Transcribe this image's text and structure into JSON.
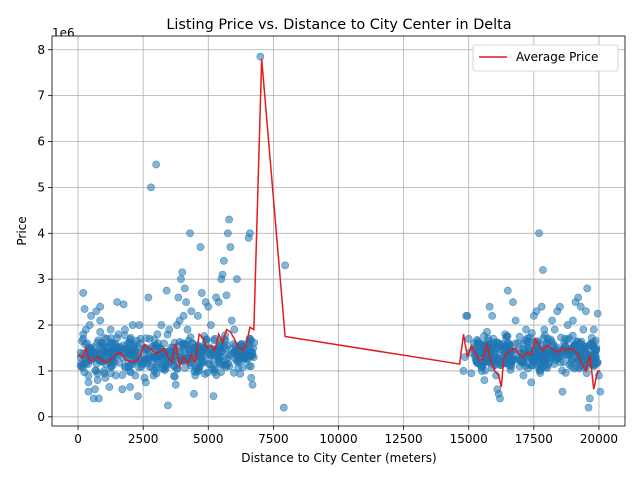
{
  "chart_data": {
    "type": "scatter",
    "title": "Listing Price vs. Distance to City Center in Delta",
    "xlabel": "Distance to City Center (meters)",
    "ylabel": "Price",
    "y_multiplier_label": "1e6",
    "xlim": [
      -1000,
      21000
    ],
    "ylim": [
      -0.2,
      8.3
    ],
    "x_ticks": [
      0,
      2500,
      5000,
      7500,
      10000,
      12500,
      15000,
      17500,
      20000
    ],
    "x_tick_labels": [
      "0",
      "2500",
      "5000",
      "7500",
      "10000",
      "12500",
      "15000",
      "17500",
      "20000"
    ],
    "y_ticks": [
      0,
      1,
      2,
      3,
      4,
      5,
      6,
      7,
      8
    ],
    "y_tick_labels": [
      "0",
      "1",
      "2",
      "3",
      "4",
      "5",
      "6",
      "7",
      "8"
    ],
    "grid": true,
    "legend_placement": "top-right",
    "colors": {
      "points": "#1f77b4",
      "line": "#e41a1c"
    },
    "scatter_series": {
      "name": "",
      "points": [
        [
          100,
          1.1
        ],
        [
          100,
          1.3
        ],
        [
          100,
          1.4
        ],
        [
          200,
          1.8
        ],
        [
          200,
          1.7
        ],
        [
          200,
          2.7
        ],
        [
          250,
          2.35
        ],
        [
          300,
          1.9
        ],
        [
          350,
          1.6
        ],
        [
          350,
          1.2
        ],
        [
          400,
          0.9
        ],
        [
          400,
          0.75
        ],
        [
          400,
          0.55
        ],
        [
          450,
          2.0
        ],
        [
          500,
          2.2
        ],
        [
          500,
          1.5
        ],
        [
          550,
          1.4
        ],
        [
          600,
          0.4
        ],
        [
          650,
          0.6
        ],
        [
          700,
          2.3
        ],
        [
          700,
          1.0
        ],
        [
          750,
          0.8
        ],
        [
          800,
          0.4
        ],
        [
          850,
          1.85
        ],
        [
          850,
          2.4
        ],
        [
          850,
          2.1
        ],
        [
          900,
          1.6
        ],
        [
          950,
          1.2
        ],
        [
          1000,
          1.0
        ],
        [
          1050,
          0.85
        ],
        [
          1100,
          1.7
        ],
        [
          1150,
          1.4
        ],
        [
          1200,
          0.65
        ],
        [
          1250,
          1.9
        ],
        [
          1300,
          1.6
        ],
        [
          1400,
          1.2
        ],
        [
          1450,
          0.9
        ],
        [
          1500,
          2.5
        ],
        [
          1550,
          1.8
        ],
        [
          1600,
          1.5
        ],
        [
          1700,
          0.6
        ],
        [
          1750,
          2.45
        ],
        [
          1800,
          1.9
        ],
        [
          1900,
          1.6
        ],
        [
          1950,
          1.1
        ],
        [
          2000,
          0.65
        ],
        [
          2100,
          2.0
        ],
        [
          2150,
          1.4
        ],
        [
          2200,
          0.9
        ],
        [
          2300,
          0.45
        ],
        [
          2350,
          2.0
        ],
        [
          2400,
          1.6
        ],
        [
          2500,
          1.2
        ],
        [
          2550,
          0.85
        ],
        [
          2600,
          0.75
        ],
        [
          2700,
          2.6
        ],
        [
          2750,
          1.7
        ],
        [
          2800,
          5.0
        ],
        [
          2850,
          1.3
        ],
        [
          2900,
          0.9
        ],
        [
          3000,
          5.5
        ],
        [
          3050,
          1.8
        ],
        [
          3150,
          1.5
        ],
        [
          3200,
          2.0
        ],
        [
          3300,
          1.6
        ],
        [
          3400,
          2.75
        ],
        [
          3450,
          0.25
        ],
        [
          3500,
          1.9
        ],
        [
          3600,
          1.4
        ],
        [
          3700,
          1.1
        ],
        [
          3750,
          0.7
        ],
        [
          3800,
          2.0
        ],
        [
          3850,
          2.6
        ],
        [
          3900,
          2.1
        ],
        [
          3950,
          3.0
        ],
        [
          4000,
          3.15
        ],
        [
          4050,
          2.2
        ],
        [
          4100,
          2.8
        ],
        [
          4150,
          2.5
        ],
        [
          4200,
          1.9
        ],
        [
          4300,
          4.0
        ],
        [
          4350,
          2.3
        ],
        [
          4400,
          1.6
        ],
        [
          4450,
          0.5
        ],
        [
          4500,
          0.9
        ],
        [
          4600,
          2.2
        ],
        [
          4700,
          3.7
        ],
        [
          4750,
          2.7
        ],
        [
          4800,
          1.5
        ],
        [
          4900,
          2.5
        ],
        [
          5000,
          2.4
        ],
        [
          5100,
          2.0
        ],
        [
          5200,
          0.45
        ],
        [
          5250,
          1.7
        ],
        [
          5300,
          2.6
        ],
        [
          5400,
          2.5
        ],
        [
          5500,
          3.0
        ],
        [
          5550,
          3.1
        ],
        [
          5600,
          3.4
        ],
        [
          5700,
          2.65
        ],
        [
          5750,
          4.0
        ],
        [
          5800,
          4.3
        ],
        [
          5850,
          3.7
        ],
        [
          5900,
          2.1
        ],
        [
          6000,
          1.9
        ],
        [
          6100,
          3.0
        ],
        [
          6200,
          1.5
        ],
        [
          6300,
          1.3
        ],
        [
          6500,
          1.6
        ],
        [
          6550,
          3.9
        ],
        [
          6600,
          4.0
        ],
        [
          6650,
          0.85
        ],
        [
          6700,
          0.7
        ],
        [
          6750,
          1.3
        ],
        [
          7000,
          7.85
        ],
        [
          7900,
          0.2
        ],
        [
          7950,
          3.3
        ],
        [
          14800,
          1.0
        ],
        [
          14850,
          1.3
        ],
        [
          14900,
          2.2
        ],
        [
          14950,
          2.2
        ],
        [
          15000,
          1.7
        ],
        [
          15050,
          1.4
        ],
        [
          15100,
          0.95
        ],
        [
          15200,
          1.6
        ],
        [
          15300,
          1.2
        ],
        [
          15400,
          1.5
        ],
        [
          15500,
          1.0
        ],
        [
          15600,
          0.8
        ],
        [
          15700,
          1.85
        ],
        [
          15800,
          2.4
        ],
        [
          15900,
          2.2
        ],
        [
          15950,
          1.7
        ],
        [
          16000,
          1.2
        ],
        [
          16050,
          0.9
        ],
        [
          16100,
          0.6
        ],
        [
          16150,
          0.5
        ],
        [
          16200,
          0.4
        ],
        [
          16300,
          1.5
        ],
        [
          16400,
          1.8
        ],
        [
          16500,
          2.75
        ],
        [
          16600,
          1.3
        ],
        [
          16700,
          2.5
        ],
        [
          16800,
          2.1
        ],
        [
          16900,
          1.6
        ],
        [
          17000,
          1.2
        ],
        [
          17100,
          0.9
        ],
        [
          17200,
          1.9
        ],
        [
          17300,
          1.5
        ],
        [
          17400,
          0.75
        ],
        [
          17500,
          2.2
        ],
        [
          17600,
          2.3
        ],
        [
          17700,
          4.0
        ],
        [
          17800,
          2.4
        ],
        [
          17850,
          3.2
        ],
        [
          17900,
          1.9
        ],
        [
          18000,
          1.6
        ],
        [
          18100,
          1.2
        ],
        [
          18200,
          2.1
        ],
        [
          18300,
          1.9
        ],
        [
          18400,
          2.3
        ],
        [
          18500,
          2.4
        ],
        [
          18600,
          0.55
        ],
        [
          18700,
          1.7
        ],
        [
          18800,
          2.0
        ],
        [
          18900,
          1.4
        ],
        [
          19000,
          2.1
        ],
        [
          19100,
          2.5
        ],
        [
          19200,
          2.6
        ],
        [
          19300,
          2.4
        ],
        [
          19400,
          1.9
        ],
        [
          19500,
          2.3
        ],
        [
          19550,
          2.8
        ],
        [
          19600,
          0.2
        ],
        [
          19650,
          0.4
        ],
        [
          19700,
          1.6
        ],
        [
          19800,
          1.9
        ],
        [
          19900,
          1.5
        ],
        [
          19950,
          2.25
        ],
        [
          20000,
          0.9
        ],
        [
          20050,
          0.55
        ]
      ],
      "dense_clusters": [
        {
          "x_range": [
            100,
            6800
          ],
          "y_range": [
            0.8,
            1.9
          ],
          "count": 420
        },
        {
          "x_range": [
            15200,
            20000
          ],
          "y_range": [
            0.8,
            1.9
          ],
          "count": 380
        }
      ]
    },
    "series": [
      {
        "name": "Average Price",
        "type": "line",
        "x": [
          0,
          150,
          300,
          450,
          600,
          750,
          900,
          1050,
          1200,
          1350,
          1500,
          1650,
          1800,
          1950,
          2100,
          2250,
          2400,
          2550,
          2700,
          2850,
          3000,
          3150,
          3300,
          3450,
          3600,
          3750,
          3900,
          4050,
          4200,
          4350,
          4500,
          4650,
          4800,
          4950,
          5100,
          5250,
          5400,
          5550,
          5700,
          5850,
          6000,
          6150,
          6300,
          6450,
          6600,
          6750,
          7050,
          7950,
          14650,
          14800,
          14950,
          15100,
          15250,
          15400,
          15550,
          15700,
          15850,
          16000,
          16150,
          16250,
          16350,
          16500,
          16650,
          16800,
          16950,
          17100,
          17250,
          17400,
          17550,
          17700,
          17850,
          18000,
          18150,
          18300,
          18450,
          18600,
          18750,
          18900,
          19050,
          19200,
          19350,
          19500,
          19650,
          19800,
          19950,
          20050
        ],
        "y": [
          1.35,
          1.28,
          1.5,
          1.2,
          1.25,
          1.3,
          1.25,
          1.18,
          1.22,
          1.3,
          1.38,
          1.4,
          1.25,
          1.22,
          1.2,
          1.22,
          1.35,
          1.58,
          1.5,
          1.45,
          1.38,
          1.42,
          1.5,
          1.3,
          1.2,
          1.6,
          1.1,
          1.3,
          1.15,
          1.35,
          1.2,
          1.8,
          1.72,
          1.5,
          1.55,
          1.45,
          1.8,
          1.62,
          1.9,
          1.85,
          1.7,
          1.5,
          1.45,
          1.55,
          1.95,
          1.9,
          7.8,
          1.75,
          1.15,
          1.8,
          1.3,
          1.55,
          1.4,
          1.25,
          1.25,
          1.6,
          1.2,
          1.0,
          0.9,
          0.65,
          1.3,
          1.4,
          1.45,
          1.5,
          1.35,
          1.3,
          1.4,
          1.35,
          1.7,
          1.55,
          1.45,
          1.55,
          1.5,
          1.45,
          1.4,
          1.5,
          1.45,
          1.5,
          1.45,
          1.35,
          1.15,
          1.0,
          1.35,
          0.6,
          1.0,
          1.0
        ]
      }
    ]
  }
}
